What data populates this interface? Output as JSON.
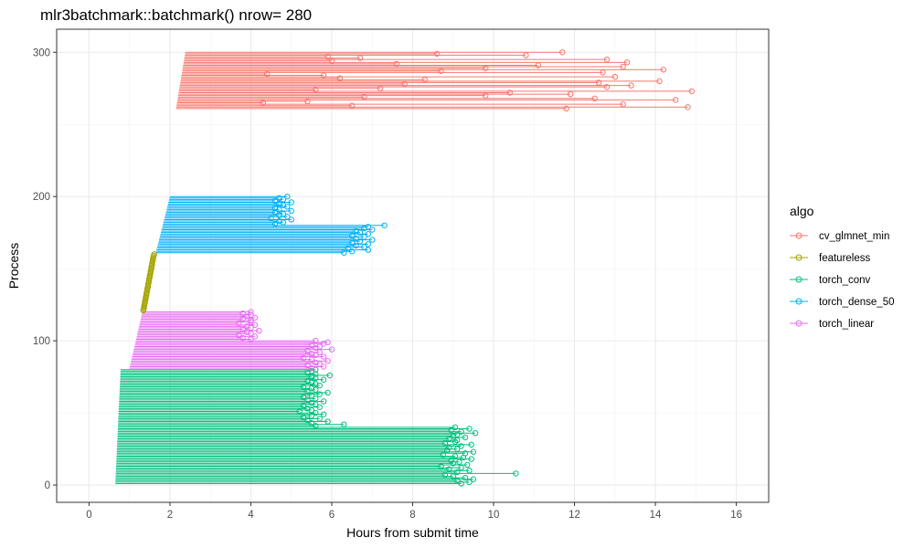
{
  "chart_data": {
    "type": "segment",
    "title": "mlr3batchmark::batchmark() nrow= 280",
    "xlabel": "Hours from submit time",
    "ylabel": "Process",
    "xlim": [
      -0.8,
      16.8
    ],
    "ylim": [
      -12,
      316
    ],
    "x_ticks": [
      0,
      2,
      4,
      6,
      8,
      10,
      12,
      14,
      16
    ],
    "y_ticks": [
      0,
      100,
      200,
      300
    ],
    "grid": true,
    "legend": {
      "title": "algo",
      "position": "right",
      "entries": [
        {
          "name": "cv_glmnet_min",
          "color": "#F8766D"
        },
        {
          "name": "featureless",
          "color": "#A3A500"
        },
        {
          "name": "torch_conv",
          "color": "#00BF7D"
        },
        {
          "name": "torch_dense_50",
          "color": "#00B0F6"
        },
        {
          "name": "torch_linear",
          "color": "#E76BF3"
        }
      ]
    },
    "series": [
      {
        "name": "torch_conv",
        "color": "#00BF7D",
        "process_start": 1,
        "start": [
          0.65,
          0.78
        ],
        "end": [
          9.2,
          9.4,
          9.1,
          9.5,
          9.3,
          9.0,
          8.8,
          10.55,
          9.1,
          9.4,
          8.9,
          9.2,
          8.7,
          9.35,
          9.0,
          9.15,
          8.95,
          9.45,
          9.25,
          9.05,
          8.75,
          9.3,
          9.5,
          8.85,
          9.1,
          8.9,
          9.2,
          9.45,
          8.8,
          9.05,
          9.1,
          8.9,
          9.3,
          9.0,
          9.1,
          9.55,
          9.2,
          8.95,
          9.4,
          9.05,
          5.6,
          6.3,
          5.5,
          5.9,
          5.4,
          5.7,
          5.3,
          5.5,
          5.8,
          5.6,
          5.2,
          5.5,
          5.4,
          5.7,
          5.3,
          5.6,
          5.5,
          5.8,
          5.4,
          5.6,
          5.3,
          5.5,
          5.7,
          5.9,
          5.4,
          5.6,
          5.5,
          5.3,
          5.7,
          5.6,
          5.5,
          5.4,
          5.8,
          5.6,
          5.5,
          5.95,
          5.6,
          5.4,
          5.5,
          5.6
        ]
      },
      {
        "name": "torch_linear",
        "color": "#E76BF3",
        "process_start": 81,
        "start": [
          1.0,
          1.32
        ],
        "end": [
          5.5,
          5.8,
          5.4,
          5.7,
          5.6,
          5.9,
          5.5,
          5.3,
          5.8,
          5.6,
          5.5,
          5.7,
          5.4,
          6.0,
          5.6,
          5.7,
          5.5,
          5.8,
          5.9,
          5.6,
          4.0,
          3.8,
          4.1,
          3.7,
          4.0,
          3.9,
          4.2,
          3.8,
          4.0,
          3.9,
          4.1,
          3.7,
          4.0,
          4.0,
          3.8,
          4.1,
          3.9,
          4.0,
          3.8,
          4.0
        ]
      },
      {
        "name": "featureless",
        "color": "#A3A500",
        "process_start": 121,
        "start": [
          1.32,
          1.62
        ],
        "end": [
          1.34,
          1.35,
          1.36,
          1.36,
          1.37,
          1.38,
          1.38,
          1.39,
          1.4,
          1.4,
          1.41,
          1.42,
          1.42,
          1.43,
          1.44,
          1.44,
          1.45,
          1.46,
          1.46,
          1.47,
          1.48,
          1.48,
          1.49,
          1.5,
          1.5,
          1.51,
          1.52,
          1.52,
          1.53,
          1.54,
          1.54,
          1.55,
          1.56,
          1.56,
          1.57,
          1.58,
          1.58,
          1.59,
          1.6,
          1.61
        ]
      },
      {
        "name": "torch_dense_50",
        "color": "#00B0F6",
        "process_start": 161,
        "start": [
          1.65,
          2.0
        ],
        "end": [
          6.3,
          6.5,
          6.9,
          6.4,
          6.8,
          6.6,
          6.9,
          6.5,
          6.7,
          7.0,
          6.6,
          6.8,
          6.5,
          6.9,
          6.7,
          6.6,
          7.0,
          6.8,
          6.9,
          7.3,
          4.6,
          4.8,
          4.7,
          5.0,
          4.5,
          4.9,
          4.7,
          4.8,
          4.6,
          5.0,
          4.7,
          4.6,
          4.9,
          4.8,
          4.7,
          5.0,
          4.6,
          4.8,
          4.7,
          4.9
        ]
      },
      {
        "name": "cv_glmnet_min",
        "color": "#F8766D",
        "process_start": 261,
        "start": [
          2.15,
          2.38
        ],
        "end": [
          11.8,
          14.8,
          6.5,
          13.2,
          4.3,
          5.4,
          14.5,
          12.5,
          6.8,
          9.8,
          11.9,
          10.4,
          14.9,
          5.6,
          7.2,
          12.8,
          13.4,
          7.8,
          12.6,
          14.1,
          8.3,
          6.2,
          13.0,
          5.8,
          4.4,
          12.7,
          8.7,
          14.2,
          9.8,
          13.2,
          11.1,
          7.6,
          13.3,
          6.0,
          12.8,
          6.7,
          5.9,
          10.8,
          8.6,
          11.7
        ]
      }
    ]
  }
}
